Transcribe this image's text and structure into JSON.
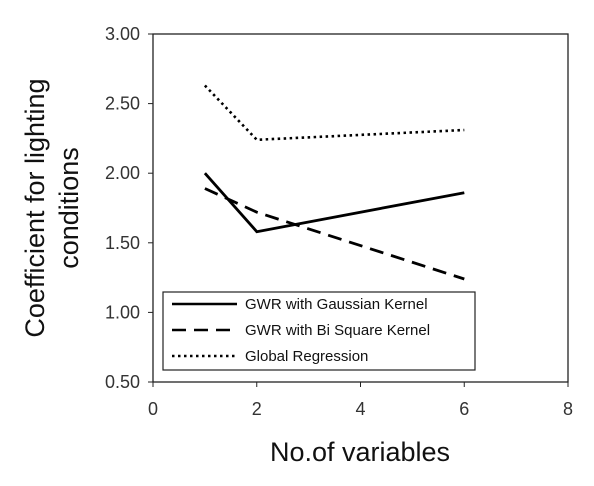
{
  "chart_data": {
    "type": "line",
    "title": "",
    "xlabel": "No.of variables",
    "ylabel_lines": [
      "Coefficient for lighting",
      "conditions"
    ],
    "xlim": [
      0,
      8
    ],
    "ylim": [
      0.5,
      3.0
    ],
    "x_ticks": [
      0,
      2,
      4,
      6,
      8
    ],
    "x_tick_labels": [
      "0",
      "2",
      "4",
      "6",
      "8"
    ],
    "y_ticks": [
      0.5,
      1.0,
      1.5,
      2.0,
      2.5,
      3.0
    ],
    "y_tick_labels": [
      "0.50",
      "1.00",
      "1.50",
      "2.00",
      "2.50",
      "3.00"
    ],
    "grid": false,
    "legend_position": "bottom-left",
    "series": [
      {
        "name": "GWR with Gaussian Kernel",
        "style": "solid",
        "color": "#000000",
        "x": [
          1,
          2,
          6
        ],
        "y": [
          2.0,
          1.58,
          1.86
        ]
      },
      {
        "name": "GWR with Bi Square Kernel",
        "style": "dashed",
        "color": "#000000",
        "x": [
          1,
          2,
          6
        ],
        "y": [
          1.89,
          1.72,
          1.24
        ]
      },
      {
        "name": "Global Regression",
        "style": "dotted",
        "color": "#000000",
        "x": [
          1,
          2,
          6
        ],
        "y": [
          2.63,
          2.24,
          2.31
        ]
      }
    ]
  }
}
